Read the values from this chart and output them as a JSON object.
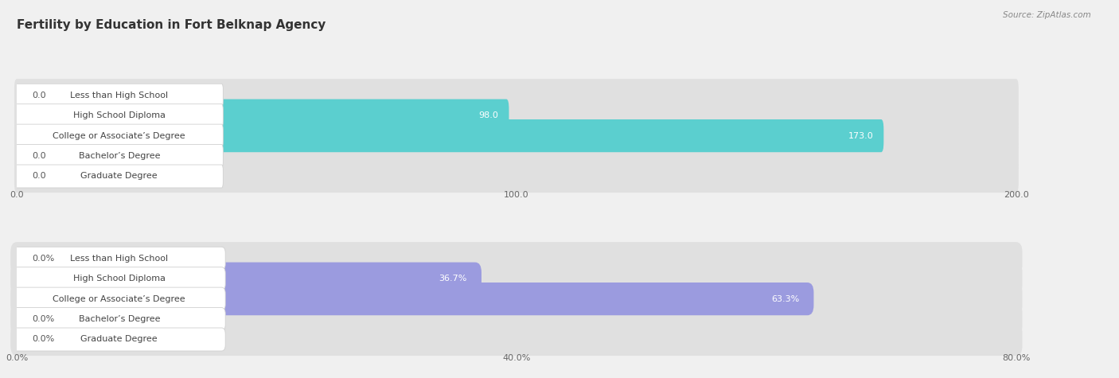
{
  "title": "Fertility by Education in Fort Belknap Agency",
  "source": "Source: ZipAtlas.com",
  "top_chart": {
    "categories": [
      "Less than High School",
      "High School Diploma",
      "College or Associate’s Degree",
      "Bachelor’s Degree",
      "Graduate Degree"
    ],
    "values": [
      0.0,
      98.0,
      173.0,
      0.0,
      0.0
    ],
    "bar_color": "#5BCFCF",
    "xlim": [
      0,
      215.0
    ],
    "xlim_display": 200.0,
    "xticks": [
      0.0,
      100.0,
      200.0
    ],
    "show_percent": false
  },
  "bottom_chart": {
    "categories": [
      "Less than High School",
      "High School Diploma",
      "College or Associate’s Degree",
      "Bachelor’s Degree",
      "Graduate Degree"
    ],
    "values": [
      0.0,
      36.7,
      63.3,
      0.0,
      0.0
    ],
    "bar_color": "#9B9BDF",
    "xlim": [
      0,
      86.0
    ],
    "xlim_display": 80.0,
    "xticks": [
      0.0,
      40.0,
      80.0
    ],
    "show_percent": true
  },
  "bg_color": "#f0f0f0",
  "bar_bg_color": "#e0e0e0",
  "label_box_color": "#ffffff",
  "label_box_edge_color": "#d0d0d0",
  "bar_height": 0.62,
  "bar_gap": 1.0,
  "title_fontsize": 11,
  "label_fontsize": 8,
  "value_fontsize": 8,
  "tick_fontsize": 8
}
